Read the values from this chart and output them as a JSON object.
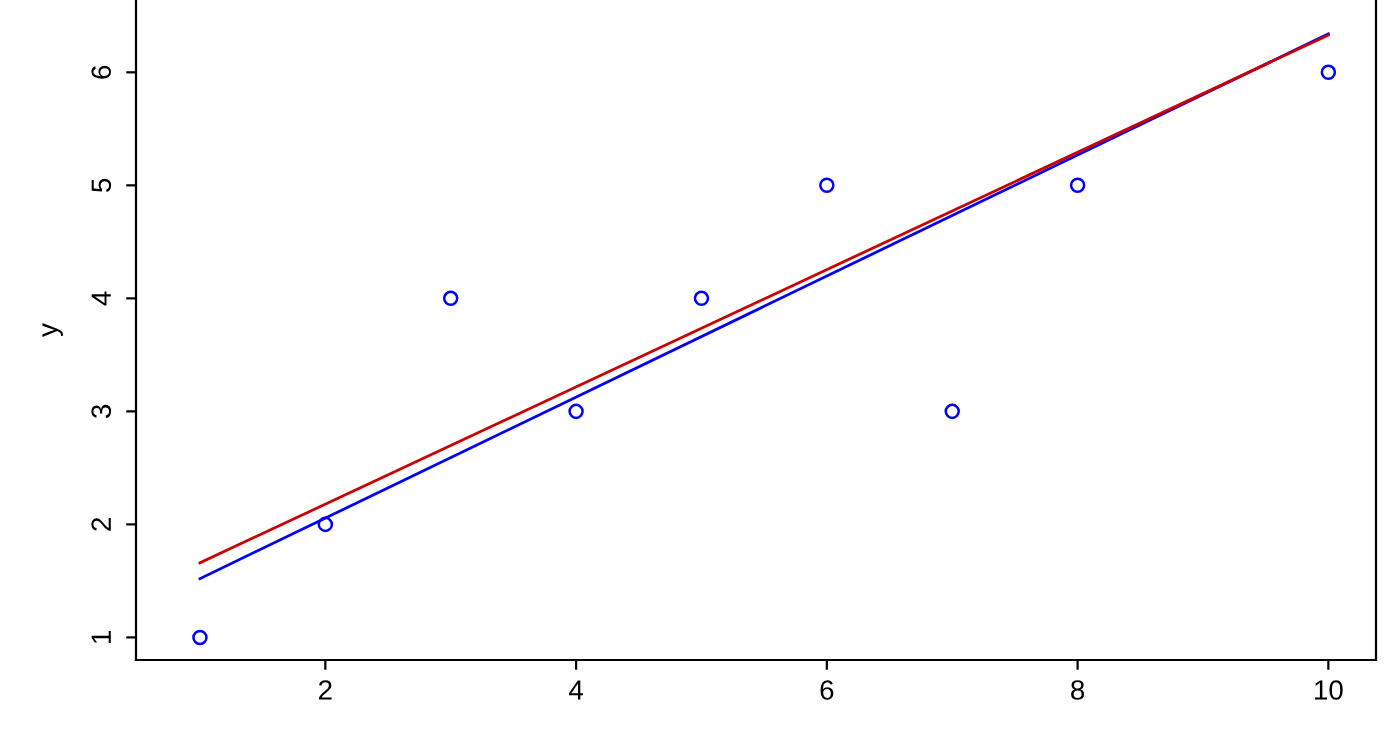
{
  "chart_data": {
    "type": "scatter",
    "ylabel": "y",
    "series": [
      {
        "marker": "circle",
        "color": "#0000ff",
        "x": [
          1,
          2,
          3,
          4,
          5,
          6,
          7,
          8,
          10
        ],
        "values": [
          1,
          2,
          4,
          3,
          4,
          5,
          3,
          5,
          6
        ]
      },
      {
        "type": "line",
        "color": "#0000ff",
        "x": [
          1,
          10
        ],
        "values": [
          1.52,
          6.34
        ]
      },
      {
        "type": "line",
        "color": "#cc0000",
        "x": [
          1,
          10
        ],
        "values": [
          1.66,
          6.33
        ]
      }
    ],
    "xlim": [
      0.49,
      10.38
    ],
    "ylim": [
      0.8,
      6.64
    ],
    "xticks": [
      2,
      4,
      6,
      8,
      10
    ],
    "yticks": [
      1,
      2,
      3,
      4,
      5,
      6
    ],
    "grid": false
  }
}
